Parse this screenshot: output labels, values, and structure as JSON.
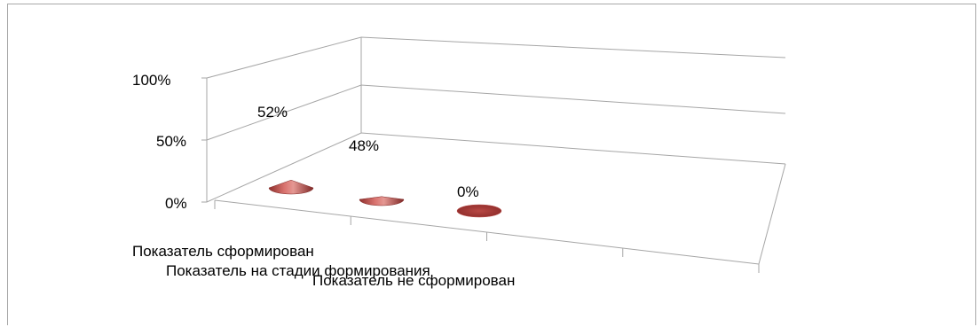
{
  "chart_data": {
    "type": "bar",
    "categories": [
      "Показатель сформирован",
      "Показатель на стадии формирования",
      "Показатель не сформирован"
    ],
    "values": [
      52,
      48,
      0
    ],
    "value_labels": [
      "52%",
      "48%",
      "0%"
    ],
    "y_ticks": [
      "0%",
      "50%",
      "100%"
    ],
    "ylim": [
      0,
      100
    ],
    "grid": true,
    "marker_shape": "cone",
    "series_color": "#c0504d"
  }
}
